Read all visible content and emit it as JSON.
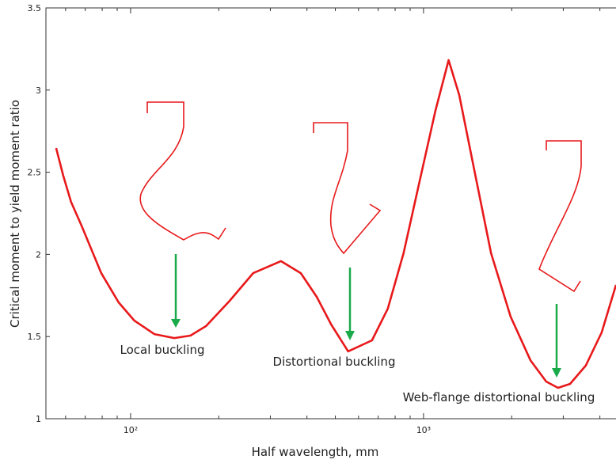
{
  "chart_data": {
    "type": "line",
    "x_label": "Half wavelength, mm",
    "y_label": "Critical moment to yield moment ratio",
    "log_x": true,
    "xlim": [
      51.4,
      4540
    ],
    "xticks": [
      {
        "value": 100,
        "label": "10²"
      },
      {
        "value": 1000,
        "label": "10³"
      }
    ],
    "xminorticks": [
      60,
      70,
      80,
      90,
      200,
      300,
      400,
      500,
      600,
      700,
      800,
      900,
      2000,
      3000,
      4000
    ],
    "ylim": [
      1,
      3.5
    ],
    "yticks": [
      1,
      1.5,
      2,
      2.5,
      3,
      3.5
    ],
    "annotations": [
      "Local buckling",
      "Distortional buckling",
      "Web-flange distortional buckling"
    ],
    "series": [
      {
        "color": "#e8191b",
        "x": [
          55.7,
          58.9,
          62.6,
          68,
          79.4,
          91,
          103,
          120.5,
          141,
          160,
          181,
          218,
          262,
          326,
          381,
          432,
          484,
          553,
          667,
          755,
          855,
          968,
          1098,
          1218,
          1324,
          1500,
          1700,
          1983,
          2317,
          2624,
          2878,
          3164,
          3580,
          4056,
          4540
        ],
        "values": [
          2.647,
          2.479,
          2.32,
          2.175,
          1.886,
          1.708,
          1.597,
          1.515,
          1.491,
          1.506,
          1.564,
          1.718,
          1.886,
          1.959,
          1.886,
          1.742,
          1.573,
          1.41,
          1.477,
          1.67,
          2.007,
          2.44,
          2.874,
          3.182,
          2.97,
          2.488,
          2.007,
          1.621,
          1.356,
          1.226,
          1.188,
          1.212,
          1.323,
          1.525,
          1.814
        ]
      }
    ]
  }
}
